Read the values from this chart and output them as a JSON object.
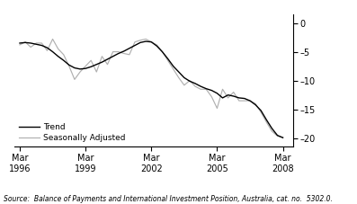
{
  "ylim": [
    -21.5,
    1.5
  ],
  "yticks": [
    0,
    -5,
    -10,
    -15,
    -20
  ],
  "yticklabels": [
    "0",
    "–5",
    "–10",
    "–15",
    "–20"
  ],
  "source_text": "Source:  Balance of Payments and International Investment Position, Australia, cat. no.  5302.0.",
  "legend_entries": [
    "Trend",
    "Seasonally Adjusted"
  ],
  "trend_color": "#000000",
  "seasonal_color": "#b0b0b0",
  "background_color": "#ffffff",
  "xlim": [
    1996.0,
    2008.7
  ],
  "x_positions": [
    1996.25,
    1999.25,
    2002.25,
    2005.25,
    2008.25
  ],
  "x_tick_labels": [
    "Mar\n1996",
    "Mar\n1999",
    "Mar\n2002",
    "Mar\n2005",
    "Mar\n2008"
  ],
  "trend_x": [
    1996.25,
    1996.5,
    1996.75,
    1997.0,
    1997.25,
    1997.5,
    1997.75,
    1998.0,
    1998.25,
    1998.5,
    1998.75,
    1999.0,
    1999.25,
    1999.5,
    1999.75,
    2000.0,
    2000.25,
    2000.5,
    2000.75,
    2001.0,
    2001.25,
    2001.5,
    2001.75,
    2002.0,
    2002.25,
    2002.5,
    2002.75,
    2003.0,
    2003.25,
    2003.5,
    2003.75,
    2004.0,
    2004.25,
    2004.5,
    2004.75,
    2005.0,
    2005.25,
    2005.5,
    2005.75,
    2006.0,
    2006.25,
    2006.5,
    2006.75,
    2007.0,
    2007.25,
    2007.5,
    2007.75,
    2008.0,
    2008.25
  ],
  "trend_y": [
    -3.5,
    -3.4,
    -3.5,
    -3.7,
    -3.9,
    -4.3,
    -5.0,
    -5.8,
    -6.5,
    -7.3,
    -7.8,
    -8.0,
    -7.9,
    -7.6,
    -7.2,
    -6.8,
    -6.3,
    -5.8,
    -5.3,
    -4.9,
    -4.4,
    -3.9,
    -3.4,
    -3.2,
    -3.3,
    -4.0,
    -5.0,
    -6.2,
    -7.5,
    -8.5,
    -9.5,
    -10.1,
    -10.5,
    -11.0,
    -11.4,
    -11.7,
    -12.2,
    -13.0,
    -12.5,
    -12.7,
    -13.0,
    -13.1,
    -13.5,
    -14.2,
    -15.2,
    -16.8,
    -18.3,
    -19.5,
    -19.9
  ],
  "seasonal_x": [
    1996.25,
    1996.5,
    1996.75,
    1997.0,
    1997.25,
    1997.5,
    1997.75,
    1998.0,
    1998.25,
    1998.5,
    1998.75,
    1999.0,
    1999.25,
    1999.5,
    1999.75,
    2000.0,
    2000.25,
    2000.5,
    2000.75,
    2001.0,
    2001.25,
    2001.5,
    2001.75,
    2002.0,
    2002.25,
    2002.5,
    2002.75,
    2003.0,
    2003.25,
    2003.5,
    2003.75,
    2004.0,
    2004.25,
    2004.5,
    2004.75,
    2005.0,
    2005.25,
    2005.5,
    2005.75,
    2006.0,
    2006.25,
    2006.5,
    2006.75,
    2007.0,
    2007.25,
    2007.5,
    2007.75,
    2008.0,
    2008.25
  ],
  "seasonal_y": [
    -3.8,
    -3.3,
    -4.2,
    -3.5,
    -3.5,
    -4.8,
    -2.8,
    -4.5,
    -5.5,
    -7.5,
    -9.8,
    -8.5,
    -7.5,
    -6.5,
    -8.5,
    -5.8,
    -7.2,
    -5.0,
    -5.0,
    -5.3,
    -5.5,
    -3.3,
    -3.0,
    -2.8,
    -3.3,
    -3.8,
    -5.0,
    -6.5,
    -8.0,
    -9.5,
    -10.8,
    -10.0,
    -11.0,
    -11.5,
    -11.5,
    -12.8,
    -14.8,
    -11.5,
    -13.0,
    -12.0,
    -13.5,
    -13.5,
    -13.5,
    -14.0,
    -15.5,
    -17.2,
    -18.8,
    -19.6,
    -19.9
  ]
}
